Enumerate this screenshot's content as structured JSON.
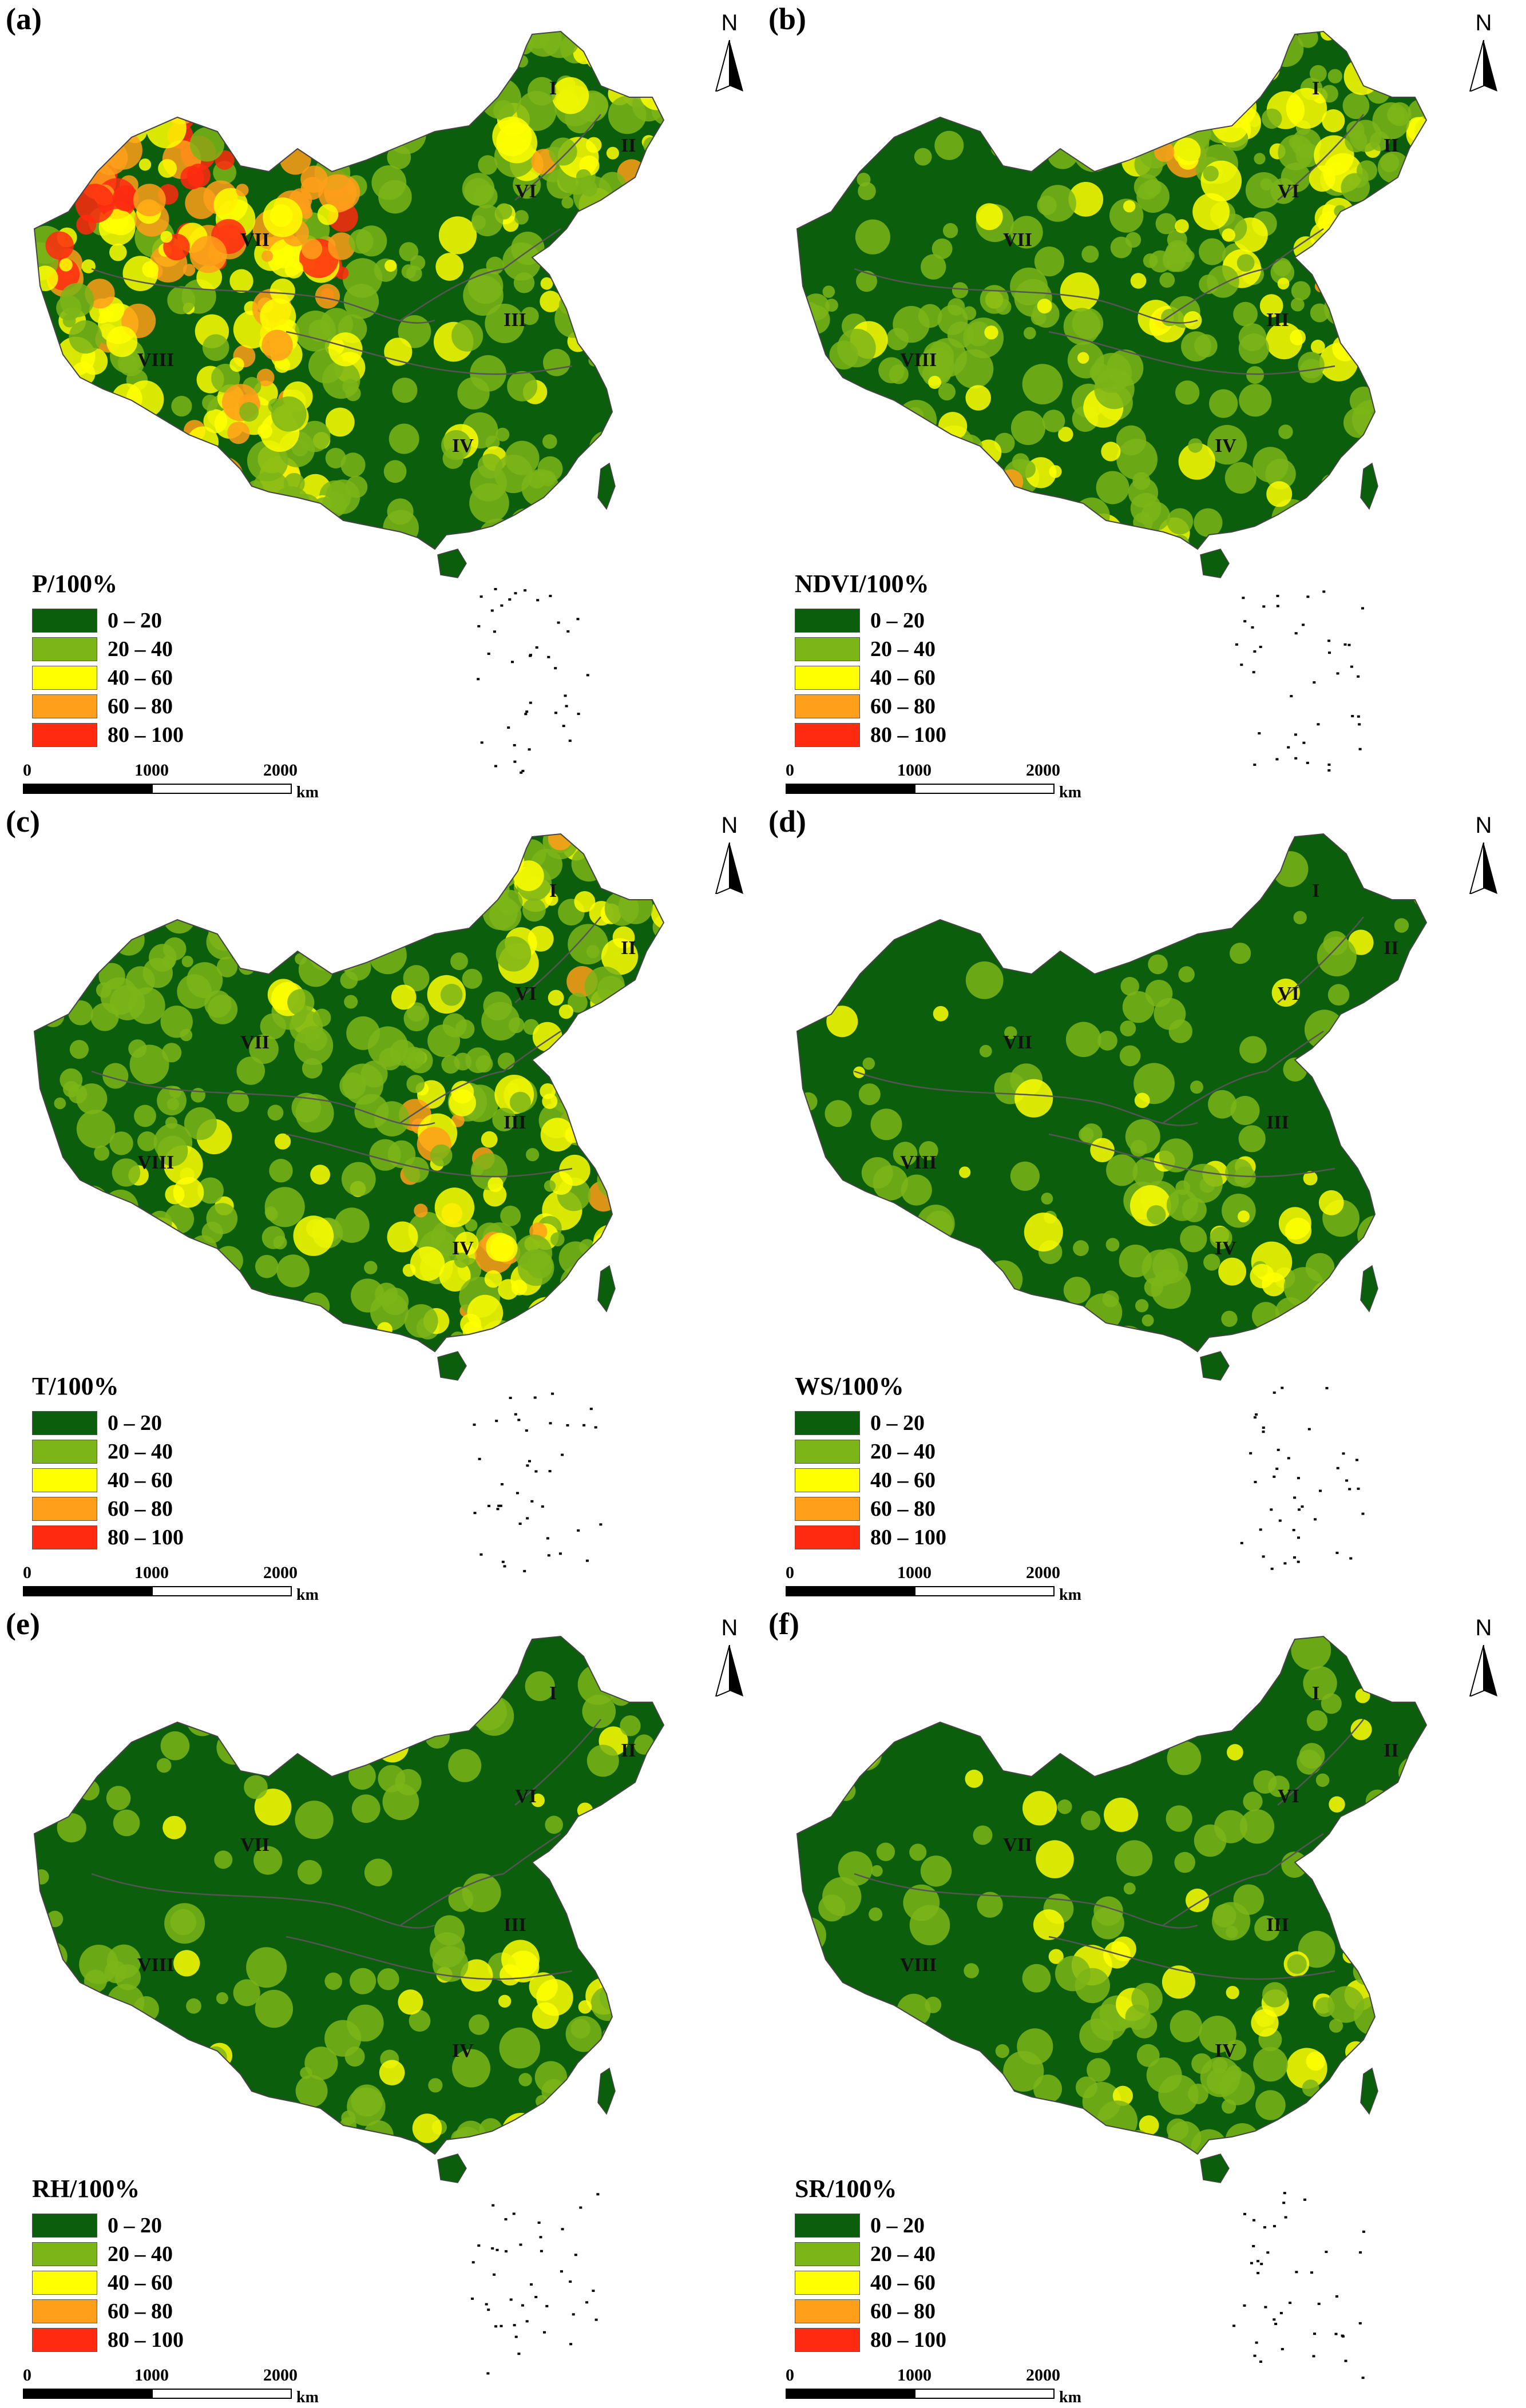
{
  "figure": {
    "panels": [
      {
        "label": "(a)",
        "legend_title": "P/100%",
        "region_labels": [
          "I",
          "II",
          "VI",
          "VII",
          "III",
          "VIII",
          "IV"
        ],
        "pattern": "hot-northwest"
      },
      {
        "label": "(b)",
        "legend_title": "NDVI/100%",
        "region_labels": [
          "I",
          "II",
          "VI",
          "VII",
          "III",
          "VIII",
          "IV"
        ],
        "pattern": "light-north"
      },
      {
        "label": "(c)",
        "legend_title": "T/100%",
        "region_labels": [
          "I",
          "II",
          "VI",
          "VII",
          "III",
          "VIII",
          "IV"
        ],
        "pattern": "mixed-east"
      },
      {
        "label": "(d)",
        "legend_title": "WS/100%",
        "region_labels": [
          "I",
          "II",
          "VI",
          "VII",
          "III",
          "VIII",
          "IV"
        ],
        "pattern": "mostly-dark"
      },
      {
        "label": "(e)",
        "legend_title": "RH/100%",
        "region_labels": [
          "I",
          "II",
          "VI",
          "VII",
          "III",
          "VIII",
          "IV"
        ],
        "pattern": "mostly-dark"
      },
      {
        "label": "(f)",
        "legend_title": "SR/100%",
        "region_labels": [
          "I",
          "II",
          "VI",
          "VII",
          "III",
          "VIII",
          "IV"
        ],
        "pattern": "mostly-dark"
      }
    ],
    "legend_classes": [
      {
        "range": "0 – 20",
        "color": "#0b5e0b"
      },
      {
        "range": "20 – 40",
        "color": "#7cb518"
      },
      {
        "range": "40 – 60",
        "color": "#ffff00"
      },
      {
        "range": "60 – 80",
        "color": "#ff9f1a"
      },
      {
        "range": "80 – 100",
        "color": "#ff2a10"
      }
    ],
    "north_arrow": "N",
    "scale_bar": {
      "ticks": [
        "0",
        "1000",
        "2000"
      ],
      "unit": "km"
    }
  }
}
